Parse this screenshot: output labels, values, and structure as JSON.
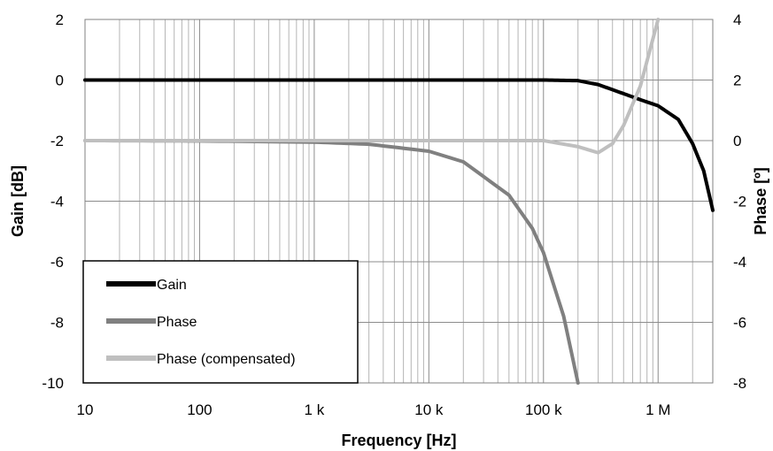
{
  "chart_data": {
    "type": "line",
    "title": "",
    "xlabel": "Frequency [Hz]",
    "ylabel": "Gain [dB]",
    "y2label": "Phase [º]",
    "x_scale": "log",
    "xlim": [
      10,
      3000000
    ],
    "ylim": [
      -10,
      2
    ],
    "y2lim": [
      -8,
      4
    ],
    "grid": true,
    "legend_position": "bottom-left",
    "x_ticks": [
      {
        "value": 10,
        "label": "10"
      },
      {
        "value": 100,
        "label": "100"
      },
      {
        "value": 1000,
        "label": "1 k"
      },
      {
        "value": 10000,
        "label": "10 k"
      },
      {
        "value": 100000,
        "label": "100 k"
      },
      {
        "value": 1000000,
        "label": "1 M"
      }
    ],
    "y_ticks": [
      {
        "value": 2,
        "label": "2"
      },
      {
        "value": 0,
        "label": "0"
      },
      {
        "value": -2,
        "label": "-2"
      },
      {
        "value": -4,
        "label": "-4"
      },
      {
        "value": -6,
        "label": "-6"
      },
      {
        "value": -8,
        "label": "-8"
      },
      {
        "value": -10,
        "label": "-10"
      }
    ],
    "y2_ticks": [
      {
        "value": 4,
        "label": "4"
      },
      {
        "value": 2,
        "label": "2"
      },
      {
        "value": 0,
        "label": "0"
      },
      {
        "value": -2,
        "label": "-2"
      },
      {
        "value": -4,
        "label": "-4"
      },
      {
        "value": -6,
        "label": "-6"
      },
      {
        "value": -8,
        "label": "-8"
      }
    ],
    "series": [
      {
        "name": "Gain",
        "axis": "left",
        "color": "#000000",
        "x": [
          10,
          100,
          1000,
          10000,
          100000,
          200000,
          300000,
          500000,
          700000,
          1000000,
          1500000,
          2000000,
          2500000,
          3000000
        ],
        "y": [
          0,
          0,
          0,
          0,
          0,
          -0.02,
          -0.15,
          -0.45,
          -0.65,
          -0.85,
          -1.3,
          -2.1,
          -3.0,
          -4.3
        ]
      },
      {
        "name": "Phase",
        "axis": "right",
        "color": "#808080",
        "x": [
          10,
          100,
          1000,
          3000,
          10000,
          20000,
          50000,
          80000,
          100000,
          150000,
          200000
        ],
        "y": [
          0,
          -0.01,
          -0.05,
          -0.12,
          -0.35,
          -0.7,
          -1.8,
          -2.9,
          -3.7,
          -5.8,
          -8.0
        ]
      },
      {
        "name": "Phase (compensated)",
        "axis": "right",
        "color": "#bfbfbf",
        "x": [
          10,
          100,
          1000,
          10000,
          100000,
          200000,
          300000,
          400000,
          500000,
          700000,
          850000,
          1000000
        ],
        "y": [
          0,
          0,
          0,
          0,
          0,
          -0.2,
          -0.4,
          -0.1,
          0.5,
          1.8,
          3.0,
          4.0
        ]
      }
    ]
  }
}
